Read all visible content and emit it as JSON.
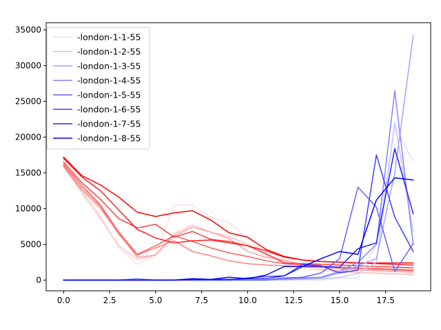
{
  "chart_data": {
    "type": "line",
    "title": "",
    "xlabel": "",
    "ylabel": "",
    "xlim": [
      -0.95,
      19.95
    ],
    "ylim": [
      -1500,
      36000
    ],
    "xticks": [
      0,
      2.5,
      5,
      7.5,
      10,
      12.5,
      15,
      17.5
    ],
    "xtick_labels": [
      "0.0",
      "2.5",
      "5.0",
      "7.5",
      "10.0",
      "12.5",
      "15.0",
      "17.5"
    ],
    "yticks": [
      0,
      5000,
      10000,
      15000,
      20000,
      25000,
      30000,
      35000
    ],
    "ytick_labels": [
      "0",
      "5000",
      "10000",
      "15000",
      "20000",
      "25000",
      "30000",
      "35000"
    ],
    "grid": false,
    "legend_position": "top-left",
    "x": [
      0,
      1,
      2,
      3,
      4,
      5,
      6,
      7,
      8,
      9,
      10,
      11,
      12,
      13,
      14,
      15,
      16,
      17,
      18,
      19
    ],
    "blue_series": [
      {
        "name": "-london-1-1-55",
        "color": "#e0e0ff",
        "values": [
          0,
          0,
          0,
          0,
          0,
          0,
          0,
          0,
          0,
          0,
          0,
          0,
          0,
          0,
          0,
          300,
          200,
          5000,
          21500,
          16600
        ]
      },
      {
        "name": "-london-1-2-55",
        "color": "#c4c4ff",
        "values": [
          0,
          0,
          0,
          0,
          0,
          0,
          0,
          0,
          0,
          0,
          0,
          0,
          0,
          100,
          200,
          400,
          900,
          2500,
          22000,
          6800
        ]
      },
      {
        "name": "-london-1-3-55",
        "color": "#a3a3ff",
        "values": [
          0,
          0,
          0,
          0,
          0,
          0,
          0,
          0,
          0,
          0,
          0,
          0,
          100,
          200,
          300,
          1000,
          2000,
          3000,
          15000,
          34200
        ]
      },
      {
        "name": "-london-1-4-55",
        "color": "#8282ff",
        "values": [
          0,
          0,
          0,
          0,
          200,
          0,
          0,
          0,
          0,
          0,
          0,
          0,
          200,
          300,
          400,
          1200,
          2500,
          5000,
          26500,
          5000
        ]
      },
      {
        "name": "-london-1-5-55",
        "color": "#6161ff",
        "values": [
          0,
          0,
          0,
          0,
          0,
          0,
          0,
          0,
          0,
          0,
          0,
          0,
          300,
          400,
          1000,
          3000,
          13000,
          10200,
          1200,
          5100
        ]
      },
      {
        "name": "-london-1-6-55",
        "color": "#4040ff",
        "values": [
          0,
          0,
          0,
          0,
          0,
          0,
          0,
          0,
          0,
          0,
          300,
          500,
          600,
          2200,
          2000,
          1000,
          1400,
          17500,
          8800,
          4000
        ]
      },
      {
        "name": "-london-1-7-55",
        "color": "#2020ff",
        "values": [
          0,
          0,
          0,
          0,
          0,
          0,
          0,
          100,
          100,
          100,
          200,
          200,
          600,
          1900,
          1900,
          1800,
          4400,
          5200,
          18400,
          9300
        ]
      },
      {
        "name": "-london-1-8-55",
        "color": "#0000ff",
        "values": [
          0,
          0,
          0,
          0,
          0,
          0,
          0,
          200,
          100,
          400,
          200,
          700,
          1900,
          1900,
          3000,
          4000,
          3600,
          11200,
          14300,
          14000
        ]
      }
    ],
    "red_series": [
      {
        "color": "#ffdcdc",
        "values": [
          15600,
          12500,
          9000,
          4500,
          2200,
          3500,
          10500,
          10500,
          8800,
          8000,
          5900,
          3500,
          2300,
          1700,
          1300,
          1100,
          1000,
          900,
          800,
          700
        ]
      },
      {
        "color": "#ffc0c0",
        "values": [
          15800,
          12200,
          8600,
          4800,
          2900,
          3500,
          6500,
          7700,
          6700,
          6100,
          5000,
          3500,
          2600,
          1900,
          1500,
          1300,
          1100,
          1000,
          900,
          800
        ]
      },
      {
        "color": "#ff9e9e",
        "values": [
          15900,
          12500,
          10000,
          6500,
          3200,
          3500,
          6200,
          7400,
          6700,
          5800,
          4000,
          3200,
          2800,
          2100,
          1800,
          1600,
          1400,
          1300,
          1200,
          1100
        ]
      },
      {
        "color": "#ff7e7e",
        "values": [
          16000,
          12800,
          10300,
          6400,
          3500,
          4500,
          5500,
          4000,
          3400,
          2700,
          2300,
          2100,
          2000,
          1900,
          1800,
          1700,
          1600,
          1500,
          1400,
          1300
        ]
      },
      {
        "color": "#ff5c5c",
        "values": [
          16200,
          13200,
          10500,
          6700,
          3600,
          4800,
          6200,
          5400,
          4500,
          3800,
          3300,
          2700,
          2300,
          2100,
          1900,
          1800,
          1700,
          1600,
          1500,
          1400
        ]
      },
      {
        "color": "#ff3b3b",
        "values": [
          16500,
          13600,
          11300,
          8600,
          7300,
          7800,
          6000,
          6800,
          5700,
          5400,
          4800,
          3700,
          2400,
          2300,
          2200,
          2100,
          2000,
          1900,
          1800,
          1700
        ]
      },
      {
        "color": "#ff1e1e",
        "values": [
          17000,
          14400,
          12500,
          9800,
          7100,
          5900,
          5200,
          5500,
          5600,
          5200,
          4800,
          4100,
          3200,
          2800,
          2600,
          2500,
          2400,
          2300,
          2200,
          2100
        ]
      },
      {
        "color": "#ff0000",
        "values": [
          17200,
          14600,
          13300,
          11600,
          9500,
          8900,
          9400,
          9700,
          8400,
          6600,
          6000,
          4300,
          3300,
          2800,
          2600,
          2500,
          2400,
          2400,
          2400,
          2400
        ]
      }
    ]
  }
}
